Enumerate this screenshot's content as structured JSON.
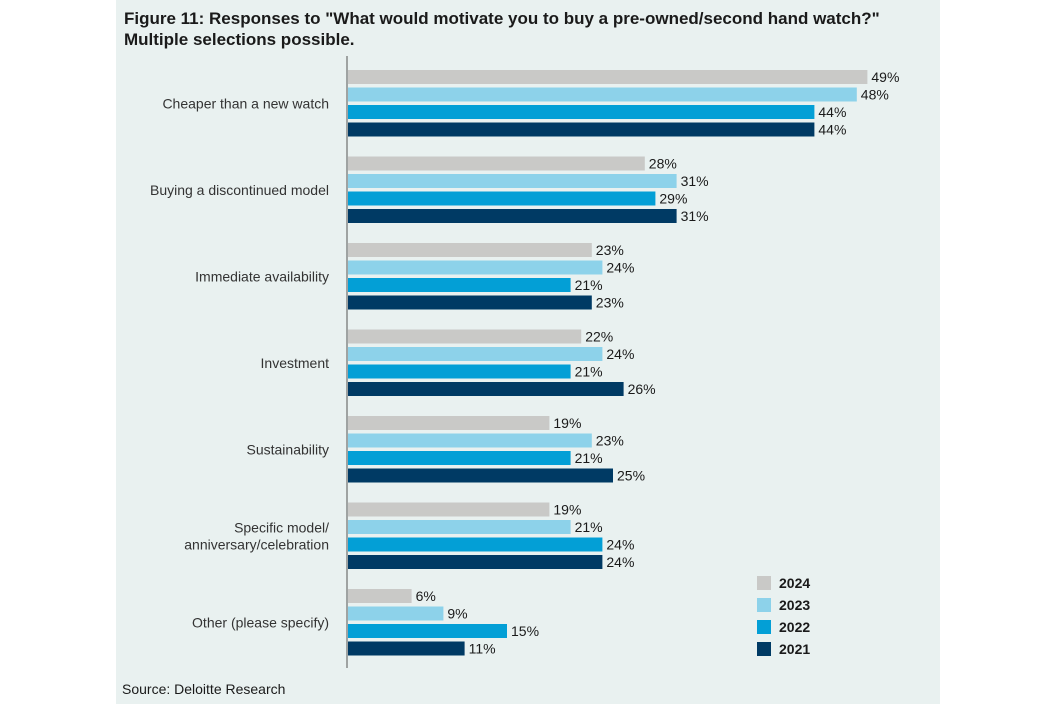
{
  "title_line1": "Figure 11: Responses to \"What would motivate you to buy a pre-owned/second hand watch?\"",
  "title_line2": "Multiple selections possible.",
  "source": "Source: Deloitte Research",
  "chart_data": {
    "type": "bar",
    "orientation": "horizontal",
    "categories": [
      [
        "Cheaper than a new watch"
      ],
      [
        "Buying a discontinued model"
      ],
      [
        "Immediate availability"
      ],
      [
        "Investment"
      ],
      [
        "Sustainability"
      ],
      [
        "Specific model/",
        "anniversary/celebration"
      ],
      [
        "Other (please specify)"
      ]
    ],
    "series": [
      {
        "name": "2024",
        "color": "#c9c9c7",
        "values": [
          49,
          28,
          23,
          22,
          19,
          19,
          6
        ]
      },
      {
        "name": "2023",
        "color": "#8dd2ea",
        "values": [
          48,
          31,
          24,
          24,
          23,
          21,
          9
        ]
      },
      {
        "name": "2022",
        "color": "#039fd6",
        "values": [
          44,
          29,
          21,
          21,
          21,
          24,
          15
        ]
      },
      {
        "name": "2021",
        "color": "#003a64",
        "values": [
          44,
          31,
          23,
          26,
          25,
          24,
          11
        ]
      }
    ],
    "value_suffix": "%",
    "legend_position": "bottom-right",
    "grid": false
  }
}
